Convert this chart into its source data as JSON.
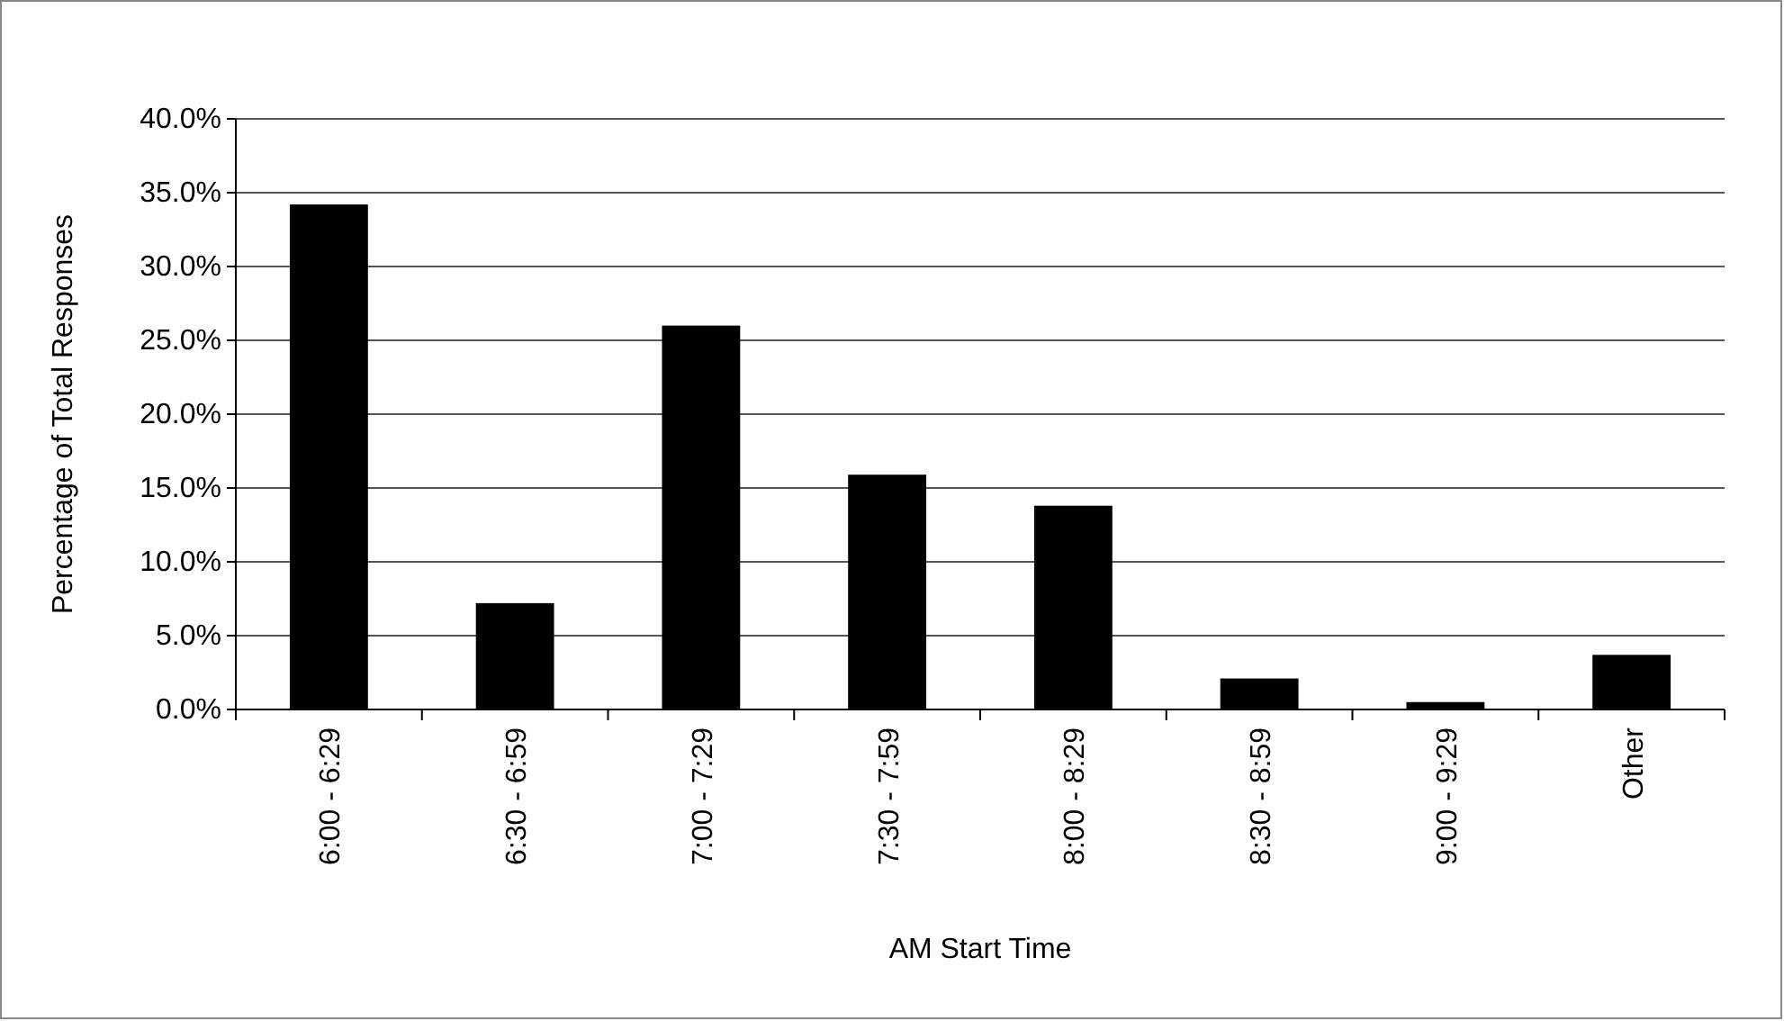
{
  "chart_data": {
    "type": "bar",
    "xlabel": "AM Start Time",
    "ylabel": "Percentage of Total Responses",
    "categories": [
      "6:00 - 6:29",
      "6:30 - 6:59",
      "7:00 - 7:29",
      "7:30 - 7:59",
      "8:00 - 8:29",
      "8:30 - 8:59",
      "9:00 - 9:29",
      "Other"
    ],
    "values": [
      34.2,
      7.2,
      26.0,
      15.9,
      13.8,
      2.1,
      0.5,
      3.7
    ],
    "color": "#000000",
    "ylim": [
      0,
      40
    ],
    "yticks": [
      {
        "value": 0,
        "label": "0.0%"
      },
      {
        "value": 5,
        "label": "5.0%"
      },
      {
        "value": 10,
        "label": "10.0%"
      },
      {
        "value": 15,
        "label": "15.0%"
      },
      {
        "value": 20,
        "label": "20.0%"
      },
      {
        "value": 25,
        "label": "25.0%"
      },
      {
        "value": 30,
        "label": "30.0%"
      },
      {
        "value": 35,
        "label": "35.0%"
      },
      {
        "value": 40,
        "label": "40.0%"
      }
    ],
    "grid": "y"
  }
}
